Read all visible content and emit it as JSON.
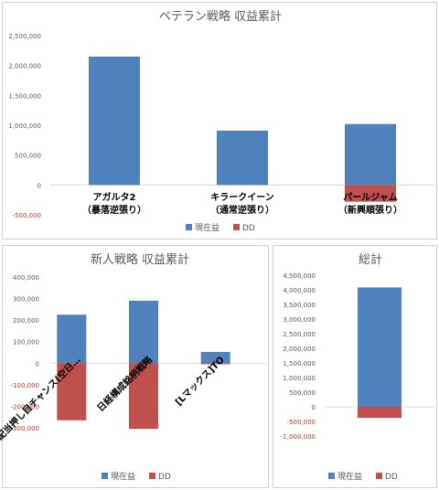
{
  "colors": {
    "current": "#4f81bd",
    "dd": "#c0504d"
  },
  "chart_data": [
    {
      "type": "bar",
      "stacked": true,
      "title": "ベテラン戦略 収益累計",
      "categories": [
        [
          "アガルタ2",
          "（暴落逆張り）"
        ],
        [
          "キラークイーン",
          "（通常逆張り）"
        ],
        [
          "パールジャム",
          "（新興順張り）"
        ]
      ],
      "ylim": [
        -500000,
        2500000
      ],
      "yticks": [
        -500000,
        0,
        500000,
        1000000,
        1500000,
        2000000,
        2500000
      ],
      "ytick_labels": [
        "-500,000",
        "0",
        "500,000",
        "1,000,000",
        "1,500,000",
        "2,000,000",
        "2,500,000"
      ],
      "series": [
        {
          "name": "現在益",
          "values": [
            2150000,
            910000,
            1020000
          ]
        },
        {
          "name": "DD",
          "values": [
            0,
            0,
            -280000
          ]
        }
      ],
      "legend": "bottom",
      "grid": false
    },
    {
      "type": "bar",
      "stacked": true,
      "title": "新人戦略 収益累計",
      "categories": [
        [
          "高配当押し目チャンス(空日…"
        ],
        [
          "日経構成銘柄戦略"
        ],
        [
          "[Lマックス]TO"
        ]
      ],
      "ylim": [
        -300000,
        400000
      ],
      "yticks": [
        -300000,
        -200000,
        -100000,
        0,
        100000,
        200000,
        300000,
        400000
      ],
      "ytick_labels": [
        "-300,000",
        "-200,000",
        "-100,000",
        "0",
        "100,000",
        "200,000",
        "300,000",
        "400,000"
      ],
      "series": [
        {
          "name": "現在益",
          "values": [
            225000,
            290000,
            52000
          ]
        },
        {
          "name": "DD",
          "values": [
            -265000,
            -305000,
            -5000
          ]
        }
      ],
      "legend": "bottom",
      "grid": false
    },
    {
      "type": "bar",
      "stacked": true,
      "title": "総計",
      "categories": [
        [
          ""
        ]
      ],
      "ylim": [
        -1000000,
        4500000
      ],
      "yticks": [
        -1000000,
        -500000,
        0,
        500000,
        1000000,
        1500000,
        2000000,
        2500000,
        3000000,
        3500000,
        4000000,
        4500000
      ],
      "ytick_labels": [
        "-1,000,000",
        "-500,000",
        "0",
        "500,000",
        "1,000,000",
        "1,500,000",
        "2,000,000",
        "2,500,000",
        "3,000,000",
        "3,500,000",
        "4,000,000",
        "4,500,000"
      ],
      "series": [
        {
          "name": "現在益",
          "values": [
            4080000
          ]
        },
        {
          "name": "DD",
          "values": [
            -380000
          ]
        }
      ],
      "legend": "bottom",
      "grid": false
    }
  ]
}
